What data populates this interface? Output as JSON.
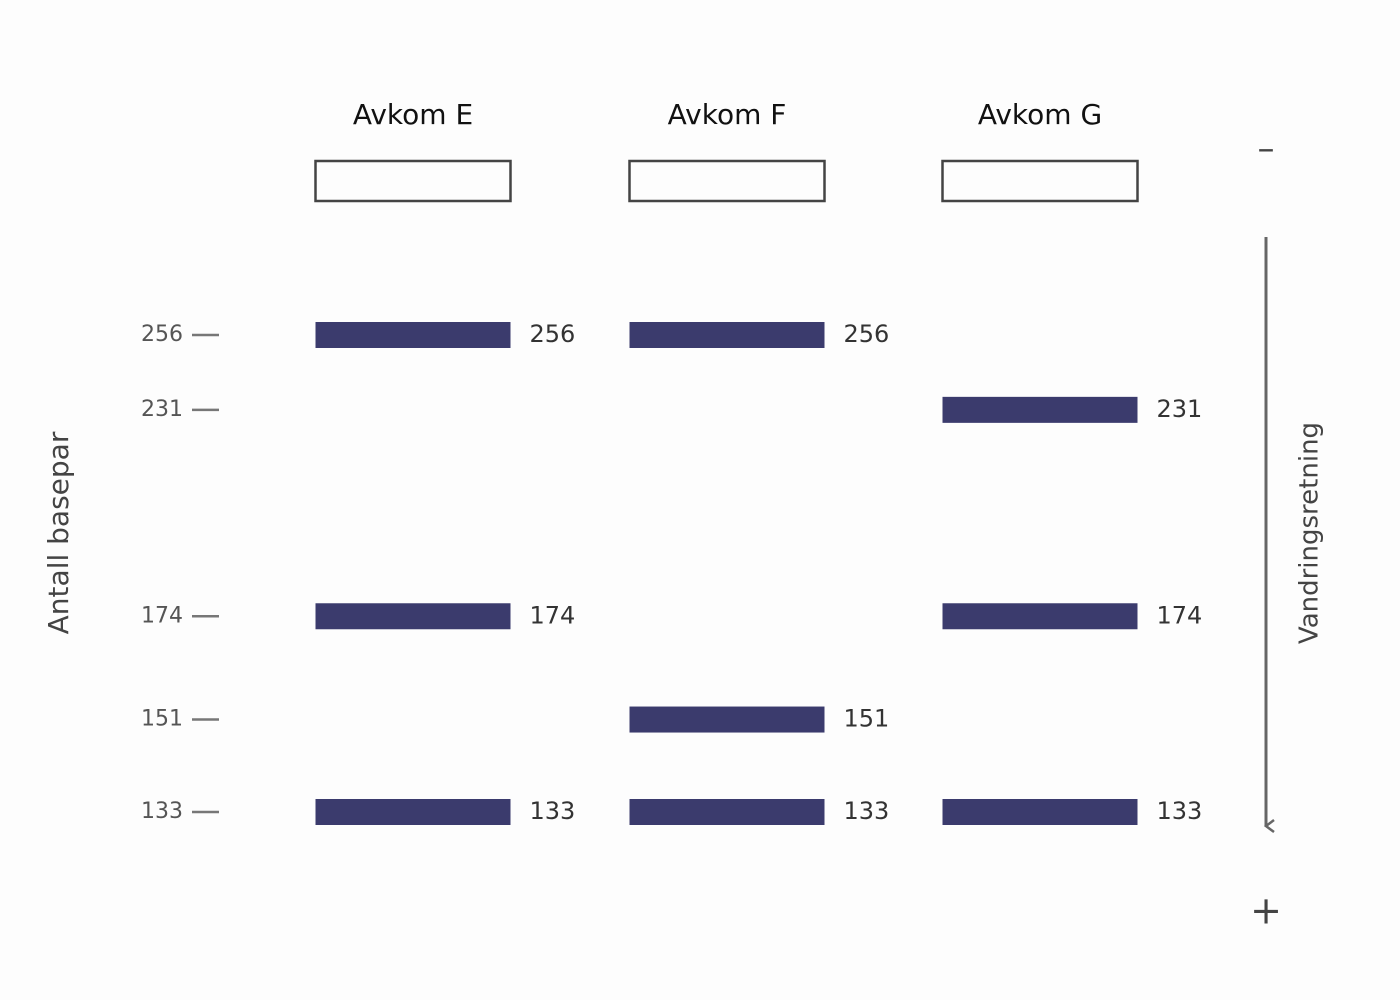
{
  "axis_label": "Antall basepar",
  "log_scale": true,
  "band_color": "#3b3b6d",
  "markers": [
    256,
    231,
    174,
    151,
    133
  ],
  "lanes": [
    {
      "label": "Avkom E",
      "bands": [
        256,
        174,
        133
      ]
    },
    {
      "label": "Avkom F",
      "bands": [
        256,
        151,
        133
      ]
    },
    {
      "label": "Avkom G",
      "bands": [
        231,
        174,
        133
      ]
    }
  ],
  "direction": {
    "label": "Vandringsretning",
    "top": "–",
    "bottom": "+"
  }
}
